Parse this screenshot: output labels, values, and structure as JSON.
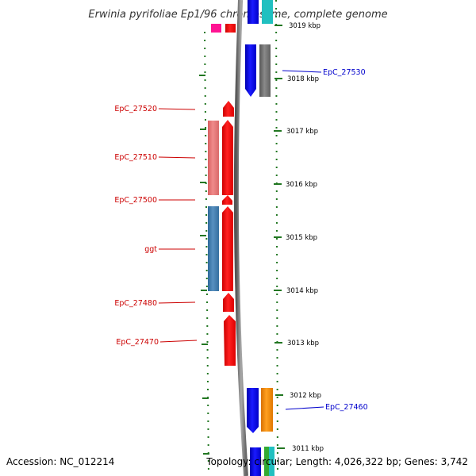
{
  "header": {
    "title": "Erwinia pyrifoliae Ep1/96 chromosome, complete genome"
  },
  "footer": {
    "accession": "Accession: NC_012214",
    "topology": "Topology: circular; Length: 4,026,322 bp; Genes: 3,742"
  },
  "scale": {
    "unit": "kbp",
    "ticks": [
      {
        "label": "3019 kbp"
      },
      {
        "label": "3018 kbp"
      },
      {
        "label": "3017 kbp"
      },
      {
        "label": "3016 kbp"
      },
      {
        "label": "3015 kbp"
      },
      {
        "label": "3014 kbp"
      },
      {
        "label": "3013 kbp"
      },
      {
        "label": "3012 kbp"
      },
      {
        "label": "3011 kbp"
      }
    ]
  },
  "gene_labels": {
    "left": [
      {
        "name": "EpC_27520",
        "color": "#cc0000"
      },
      {
        "name": "EpC_27510",
        "color": "#cc0000"
      },
      {
        "name": "EpC_27500",
        "color": "#cc0000"
      },
      {
        "name": "ggt",
        "color": "#cc0000"
      },
      {
        "name": "EpC_27480",
        "color": "#cc0000"
      },
      {
        "name": "EpC_27470",
        "color": "#cc0000"
      }
    ],
    "right": [
      {
        "name": "EpC_27530",
        "color": "#0000cc"
      },
      {
        "name": "EpC_27460",
        "color": "#0000cc"
      }
    ]
  },
  "colors": {
    "red_gene": "#ff0000",
    "pink_gene": "#ee7777",
    "steel_gene": "#4682b4",
    "blue_gene": "#0000ee",
    "gray_gene": "#777777",
    "orange_gene": "#ff8c00",
    "magenta_gene": "#ff1493",
    "cyan_gene": "#20c0c0",
    "green_gene": "#33aa33",
    "backbone": "#808080",
    "dash_green": "#227722"
  }
}
